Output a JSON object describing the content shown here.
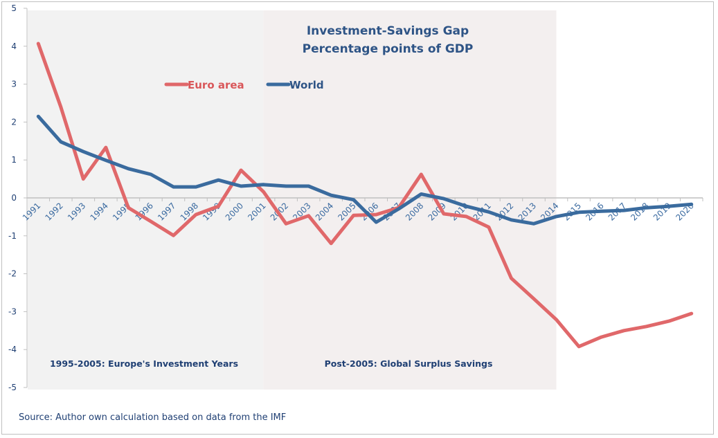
{
  "chart_data": {
    "type": "line",
    "title": "Investment-Savings Gap",
    "subtitle": "Percentage points of GDP",
    "xlabel": "",
    "ylabel": "",
    "ylim": [
      -5,
      5
    ],
    "yticks": [
      "5",
      "4",
      "3",
      "2",
      "1",
      "0",
      "-1",
      "-2",
      "-3",
      "-4",
      "-5"
    ],
    "ytick_values": [
      5,
      4,
      3,
      2,
      1,
      0,
      -1,
      -2,
      -3,
      -4,
      -5
    ],
    "grid": false,
    "legend_position": "top-center",
    "x": [
      "1991",
      "1992",
      "1993",
      "1994",
      "1995",
      "1996",
      "1997",
      "1998",
      "1999",
      "2000",
      "2001",
      "2002",
      "2003",
      "2004",
      "2005",
      "2006",
      "2007",
      "2008",
      "2009",
      "2010",
      "2011",
      "2012",
      "2013",
      "2014",
      "2015",
      "2016",
      "2017",
      "2018",
      "2019",
      "2020"
    ],
    "series": [
      {
        "name": "Euro area",
        "color": "#e0686a",
        "values": [
          4.07,
          2.4,
          0.5,
          1.33,
          -0.26,
          -0.62,
          -0.99,
          -0.44,
          -0.22,
          0.73,
          0.16,
          -0.68,
          -0.47,
          -1.2,
          -0.46,
          -0.44,
          -0.26,
          0.62,
          -0.42,
          -0.49,
          -0.77,
          -2.12,
          -2.66,
          -3.21,
          -3.92,
          -3.67,
          -3.5,
          -3.39,
          -3.25,
          -3.05
        ]
      },
      {
        "name": "World",
        "color": "#3a6b9e",
        "values": [
          2.15,
          1.48,
          1.22,
          0.99,
          0.77,
          0.62,
          0.29,
          0.29,
          0.47,
          0.31,
          0.35,
          0.31,
          0.31,
          0.07,
          -0.05,
          -0.64,
          -0.29,
          0.1,
          -0.02,
          -0.22,
          -0.37,
          -0.58,
          -0.68,
          -0.49,
          -0.38,
          -0.35,
          -0.33,
          -0.26,
          -0.22,
          -0.17
        ]
      }
    ],
    "shaded_regions": [
      {
        "label": "1995-2005: Europe's Investment Years",
        "from": "1991",
        "to": "2001",
        "color": "#f2f2f2"
      },
      {
        "label": "Post-2005: Global Surplus Savings",
        "from": "2001",
        "to": "2014",
        "color": "#f3efef"
      }
    ],
    "annotations": [
      "1995-2005: Europe's Investment Years",
      "Post-2005: Global Surplus Savings"
    ],
    "source": "Source: Author own calculation based on data from the IMF"
  }
}
